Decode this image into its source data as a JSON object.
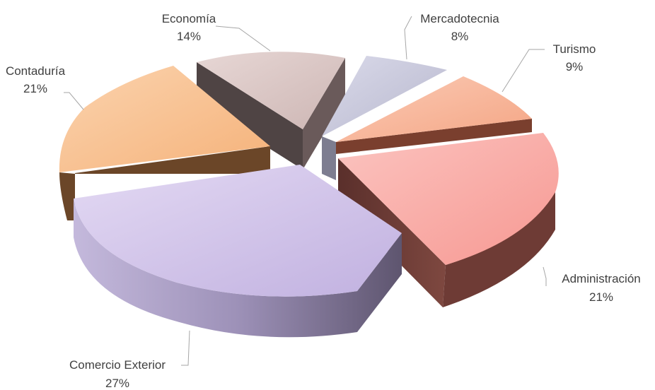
{
  "chart_data": {
    "type": "pie",
    "style": "3d-exploded",
    "legend": "none",
    "slices": [
      {
        "label": "Administración",
        "value": 21,
        "value_label": "21%",
        "color": "#f9a8a4",
        "side_color": "#6e3b35"
      },
      {
        "label": "Comercio Exterior",
        "value": 27,
        "value_label": "27%",
        "color": "#cdbfe6",
        "side_color": "#8a7ea3"
      },
      {
        "label": "Contaduría",
        "value": 21,
        "value_label": "21%",
        "color": "#f8c190",
        "side_color": "#6b4a2a"
      },
      {
        "label": "Economía",
        "value": 14,
        "value_label": "14%",
        "color": "#dcc7c5",
        "side_color": "#574a4a"
      },
      {
        "label": "Mercadotecnia",
        "value": 8,
        "value_label": "8%",
        "color": "#c9c9dc",
        "side_color": "#7a7a8c"
      },
      {
        "label": "Turismo",
        "value": 9,
        "value_label": "9%",
        "color": "#f8b89e",
        "side_color": "#6b3d2c"
      }
    ]
  }
}
